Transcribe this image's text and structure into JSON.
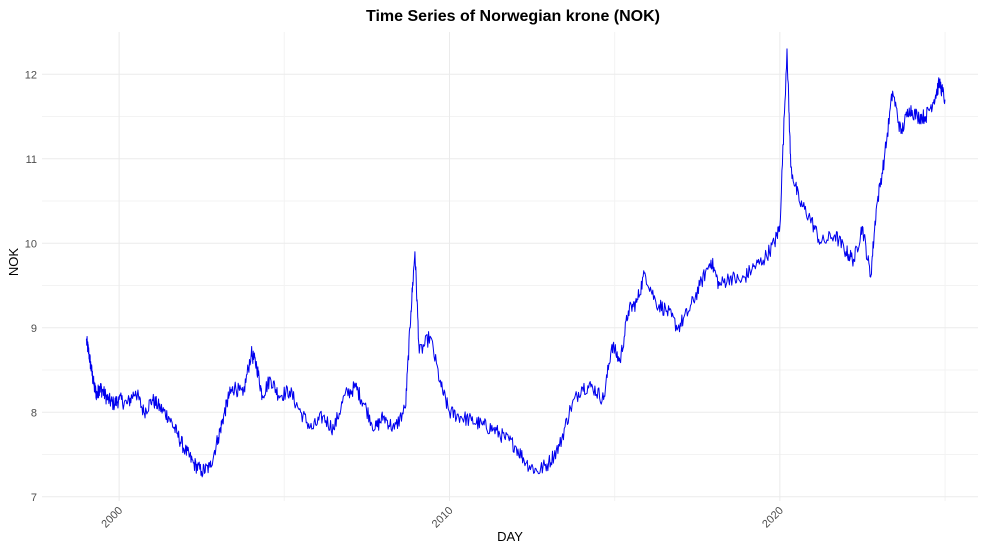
{
  "chart_data": {
    "type": "line",
    "title": "Time Series of Norwegian krone (NOK)",
    "xlabel": "DAY",
    "ylabel": "NOK",
    "x_ticks": [
      "2000",
      "2010",
      "2020"
    ],
    "y_ticks": [
      "7",
      "8",
      "9",
      "10",
      "11",
      "12"
    ],
    "xlim": [
      "1997-09-01",
      "2025-12-31"
    ],
    "ylim": [
      6.95,
      12.5
    ],
    "grid": true,
    "legend": "none",
    "colors": {
      "series": "#0000ee"
    },
    "series": [
      {
        "x": [
          "1999-01-04",
          "1999-02-01",
          "1999-03-01",
          "1999-04-01",
          "1999-05-01",
          "1999-06-01",
          "1999-07-01",
          "1999-09-01",
          "1999-11-01",
          "2000-01-01",
          "2000-04-01",
          "2000-07-01",
          "2000-10-01",
          "2001-01-01",
          "2001-04-01",
          "2001-07-01",
          "2001-10-01",
          "2002-01-01",
          "2002-04-01",
          "2002-07-01",
          "2002-10-01",
          "2003-01-01",
          "2003-03-01",
          "2003-05-01",
          "2003-07-01",
          "2003-10-01",
          "2004-01-01",
          "2004-03-01",
          "2004-05-01",
          "2004-08-01",
          "2004-11-01",
          "2005-03-01",
          "2005-07-01",
          "2005-11-01",
          "2006-03-01",
          "2006-07-01",
          "2006-11-01",
          "2007-03-01",
          "2007-06-01",
          "2007-10-01",
          "2008-01-01",
          "2008-05-01",
          "2008-09-01",
          "2008-11-01",
          "2008-12-15",
          "2009-02-01",
          "2009-06-01",
          "2009-10-01",
          "2010-01-01",
          "2010-05-01",
          "2010-09-01",
          "2011-01-01",
          "2011-05-01",
          "2011-09-01",
          "2012-01-01",
          "2012-05-01",
          "2012-09-01",
          "2013-01-01",
          "2013-05-01",
          "2013-09-01",
          "2014-01-01",
          "2014-05-01",
          "2014-09-01",
          "2014-12-01",
          "2015-03-01",
          "2015-06-01",
          "2015-09-01",
          "2015-12-01",
          "2016-04-01",
          "2016-08-01",
          "2016-12-01",
          "2017-04-01",
          "2017-08-01",
          "2017-12-01",
          "2018-03-01",
          "2018-07-01",
          "2018-11-01",
          "2019-03-01",
          "2019-07-01",
          "2019-11-01",
          "2020-01-01",
          "2020-03-20",
          "2020-05-01",
          "2020-08-01",
          "2020-12-01",
          "2021-04-01",
          "2021-09-01",
          "2022-01-01",
          "2022-04-01",
          "2022-07-01",
          "2022-10-01",
          "2022-12-01",
          "2023-03-01",
          "2023-06-01",
          "2023-09-01",
          "2023-12-01",
          "2024-03-01",
          "2024-06-01",
          "2024-09-01",
          "2024-11-01",
          "2024-12-31"
        ],
        "values": [
          8.85,
          8.7,
          8.5,
          8.3,
          8.2,
          8.3,
          8.25,
          8.15,
          8.1,
          8.15,
          8.1,
          8.25,
          8.0,
          8.15,
          8.05,
          7.95,
          7.75,
          7.55,
          7.4,
          7.3,
          7.35,
          7.7,
          7.95,
          8.2,
          8.3,
          8.2,
          8.7,
          8.55,
          8.2,
          8.4,
          8.2,
          8.25,
          8.0,
          7.8,
          7.95,
          7.8,
          8.2,
          8.3,
          8.1,
          7.8,
          7.95,
          7.8,
          8.05,
          9.2,
          9.9,
          8.7,
          8.9,
          8.3,
          8.0,
          7.95,
          7.9,
          7.85,
          7.8,
          7.7,
          7.6,
          7.4,
          7.3,
          7.4,
          7.6,
          8.05,
          8.3,
          8.3,
          8.15,
          8.8,
          8.6,
          9.2,
          9.3,
          9.65,
          9.3,
          9.2,
          9.0,
          9.2,
          9.5,
          9.8,
          9.5,
          9.6,
          9.55,
          9.7,
          9.8,
          10.0,
          10.2,
          12.3,
          10.9,
          10.5,
          10.3,
          10.0,
          10.1,
          9.9,
          9.8,
          10.2,
          9.6,
          10.4,
          11.0,
          11.8,
          11.3,
          11.6,
          11.5,
          11.5,
          11.7,
          11.9,
          11.7
        ]
      }
    ]
  }
}
